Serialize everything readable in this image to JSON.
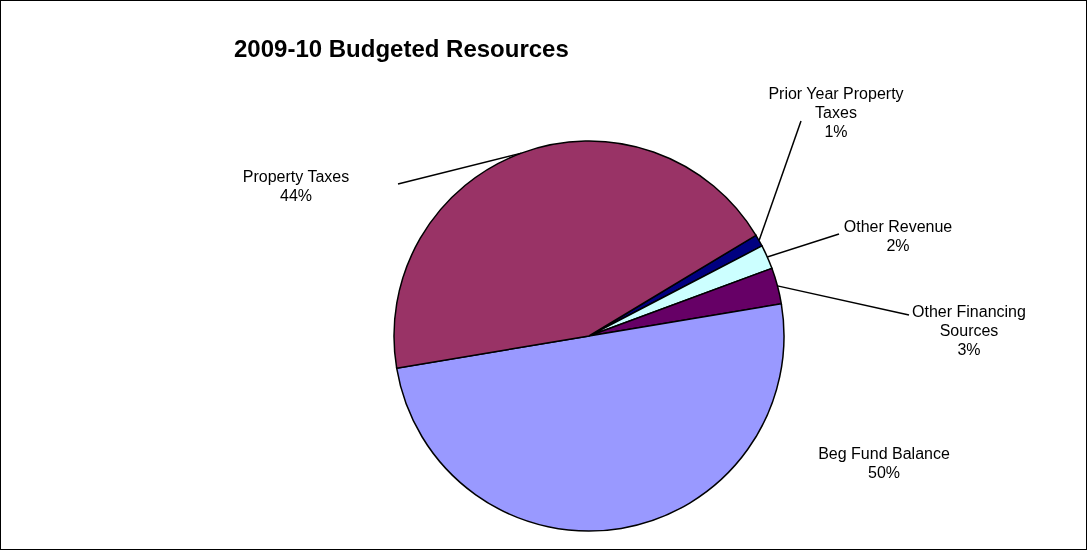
{
  "chart_data": {
    "type": "pie",
    "title": "2009-10 Budgeted Resources",
    "categories": [
      "Prior Year Property Taxes",
      "Other Revenue",
      "Other Financing Sources",
      "Beg Fund Balance",
      "Property Taxes"
    ],
    "values": [
      1,
      2,
      3,
      50,
      44
    ],
    "value_labels": [
      "1%",
      "2%",
      "3%",
      "50%",
      "44%"
    ],
    "colors": [
      "#000080",
      "#ccffff",
      "#660066",
      "#9999ff",
      "#993366"
    ]
  }
}
